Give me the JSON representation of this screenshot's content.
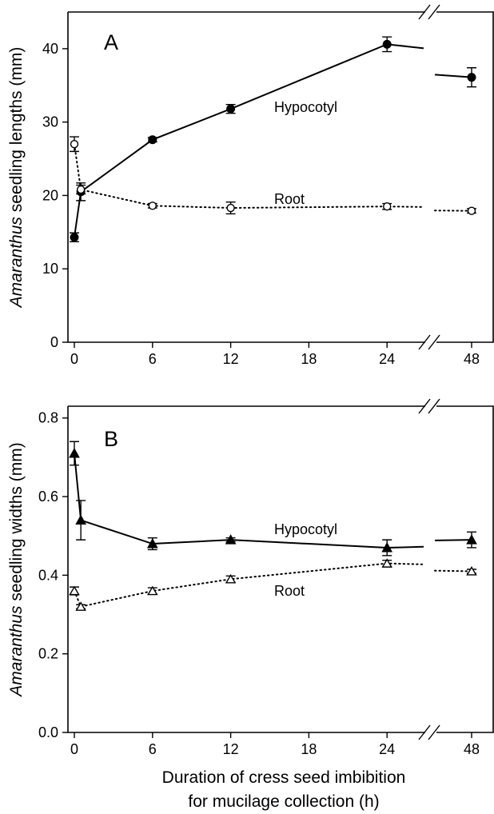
{
  "chart_data": [
    {
      "type": "line",
      "panel_label": "A",
      "ylabel_italic": "Amaranthus",
      "ylabel_rest": " seedling lengths (mm)",
      "xlabel_line1": "",
      "xlabel_line2": "",
      "x_ticks": [
        "0",
        "6",
        "12",
        "18",
        "24",
        "48"
      ],
      "y_ticks": [
        "0",
        "10",
        "20",
        "30",
        "40"
      ],
      "ylim": [
        0,
        45
      ],
      "axis_break": true,
      "series": [
        {
          "name": "Hypocotyl",
          "style": "solid",
          "marker": "filled-circle",
          "x": [
            0,
            0.5,
            6,
            12,
            24,
            48
          ],
          "y": [
            14.3,
            20.5,
            27.6,
            31.8,
            40.6,
            36.1
          ],
          "err": [
            0.6,
            1.2,
            0.3,
            0.6,
            1.0,
            1.3
          ]
        },
        {
          "name": "Root",
          "style": "dotted",
          "marker": "open-circle",
          "x": [
            0,
            0.5,
            6,
            12,
            24,
            48
          ],
          "y": [
            27.0,
            20.8,
            18.6,
            18.3,
            18.5,
            17.9
          ],
          "err": [
            1.0,
            0.6,
            0.3,
            0.8,
            0.4,
            0.3
          ]
        }
      ]
    },
    {
      "type": "line",
      "panel_label": "B",
      "ylabel_italic": "Amaranthus",
      "ylabel_rest": " seedling widths (mm)",
      "xlabel_line1": "Duration of cress seed imbibition",
      "xlabel_line2": "for mucilage collection (h)",
      "x_ticks": [
        "0",
        "6",
        "12",
        "18",
        "24",
        "48"
      ],
      "y_ticks": [
        "0.0",
        "0.2",
        "0.4",
        "0.6",
        "0.8"
      ],
      "ylim": [
        0,
        0.83
      ],
      "axis_break": true,
      "series": [
        {
          "name": "Hypocotyl",
          "style": "solid",
          "marker": "filled-triangle",
          "x": [
            0,
            0.5,
            6,
            12,
            24,
            48
          ],
          "y": [
            0.71,
            0.54,
            0.48,
            0.49,
            0.47,
            0.49
          ],
          "err": [
            0.03,
            0.05,
            0.015,
            0.005,
            0.02,
            0.02
          ]
        },
        {
          "name": "Root",
          "style": "dotted",
          "marker": "open-triangle",
          "x": [
            0,
            0.5,
            6,
            12,
            24,
            48
          ],
          "y": [
            0.36,
            0.32,
            0.36,
            0.39,
            0.43,
            0.41
          ],
          "err": [
            0.01,
            0.005,
            0.008,
            0.008,
            0.008,
            0.005
          ]
        }
      ]
    }
  ]
}
